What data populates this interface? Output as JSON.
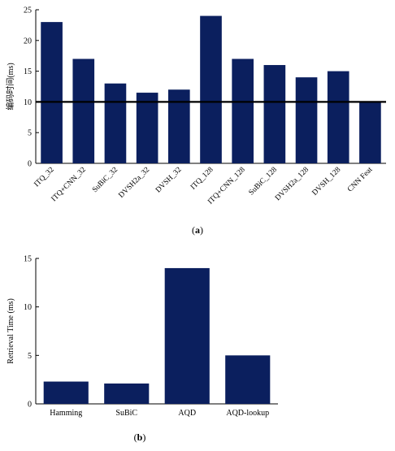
{
  "colors": {
    "bar": "#0b1f5e",
    "axis": "#000000",
    "threshold": "#000000"
  },
  "chart_data": [
    {
      "type": "bar",
      "title": "",
      "xlabel": "",
      "ylabel": "编码时间(ms)",
      "ylim": [
        0,
        25
      ],
      "yticks": [
        0,
        5,
        10,
        15,
        20,
        25
      ],
      "categories": [
        "ITQ_32",
        "ITQ+CNN_32",
        "SuBiC_32",
        "DVSH2a_32",
        "DVSH_32",
        "ITQ_128",
        "ITQ+CNN_128",
        "SuBiC_128",
        "DVSH2a_128",
        "DVSH_128",
        "CNN Feat"
      ],
      "values": [
        23,
        17,
        13,
        11.5,
        12,
        24,
        17,
        16,
        14,
        15,
        10
      ],
      "reference_line": 10,
      "grid": false,
      "caption_prefix": "(",
      "caption_letter": "a",
      "caption_suffix": ")"
    },
    {
      "type": "bar",
      "title": "",
      "xlabel": "",
      "ylabel": "Retrieval Time (ms)",
      "ylim": [
        0,
        15
      ],
      "yticks": [
        0,
        5,
        10,
        15
      ],
      "categories": [
        "Hamming",
        "SuBiC",
        "AQD",
        "AQD-lookup"
      ],
      "values": [
        2.3,
        2.1,
        14,
        5
      ],
      "grid": false,
      "caption_prefix": "(",
      "caption_letter": "b",
      "caption_suffix": ")"
    }
  ]
}
